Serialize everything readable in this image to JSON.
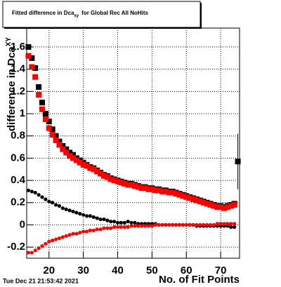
{
  "chart_data": {
    "type": "scatter",
    "title": [
      "Fitted difference in Dca",
      "xy",
      "for Global Rec All NoHits"
    ],
    "y_label": [
      "difference in Dca",
      "XY"
    ],
    "x_label": "No. of Fit Points",
    "timestamp": "Tue Dec 21 21:53:42 2021",
    "xlim": [
      13.5,
      75.5
    ],
    "ylim": [
      -0.3,
      1.77
    ],
    "xticks": [
      20,
      30,
      40,
      50,
      60,
      70
    ],
    "yticks": [
      -0.2,
      0,
      0.2,
      0.4,
      0.6,
      0.8,
      1,
      1.2,
      1.4,
      1.6
    ],
    "grid": true,
    "x": [
      14,
      15,
      16,
      17,
      18,
      19,
      20,
      21,
      22,
      23,
      24,
      25,
      26,
      27,
      28,
      29,
      30,
      31,
      32,
      33,
      34,
      35,
      36,
      37,
      38,
      39,
      40,
      41,
      42,
      43,
      44,
      45,
      46,
      47,
      48,
      49,
      50,
      51,
      52,
      53,
      54,
      55,
      56,
      57,
      58,
      59,
      60,
      61,
      62,
      63,
      64,
      65,
      66,
      67,
      68,
      69,
      70,
      71,
      72,
      73,
      74
    ],
    "series": [
      {
        "color": "#000000",
        "marker": "square",
        "values": [
          1.6,
          1.5,
          1.41,
          1.24,
          1.1,
          1.0,
          0.93,
          0.86,
          0.8,
          0.75,
          0.71,
          0.68,
          0.65,
          0.63,
          0.6,
          0.58,
          0.56,
          0.54,
          0.52,
          0.51,
          0.49,
          0.47,
          0.45,
          0.44,
          0.42,
          0.41,
          0.4,
          0.39,
          0.38,
          0.37,
          0.37,
          0.36,
          0.35,
          0.34,
          0.34,
          0.33,
          0.33,
          0.32,
          0.32,
          0.31,
          0.31,
          0.3,
          0.3,
          0.29,
          0.28,
          0.27,
          0.26,
          0.25,
          0.24,
          0.23,
          0.22,
          0.21,
          0.2,
          0.19,
          0.18,
          0.17,
          0.17,
          0.16,
          0.17,
          0.18,
          0.19
        ]
      },
      {
        "color": "#ff0000",
        "marker": "square",
        "values": [
          1.52,
          1.42,
          1.33,
          1.17,
          1.04,
          0.95,
          0.87,
          0.81,
          0.76,
          0.72,
          0.68,
          0.65,
          0.62,
          0.6,
          0.58,
          0.56,
          0.54,
          0.53,
          0.51,
          0.5,
          0.48,
          0.46,
          0.44,
          0.43,
          0.41,
          0.4,
          0.39,
          0.38,
          0.37,
          0.36,
          0.36,
          0.35,
          0.34,
          0.33,
          0.33,
          0.32,
          0.32,
          0.31,
          0.31,
          0.3,
          0.3,
          0.29,
          0.29,
          0.28,
          0.27,
          0.26,
          0.25,
          0.24,
          0.23,
          0.22,
          0.21,
          0.2,
          0.19,
          0.18,
          0.17,
          0.16,
          0.16,
          0.15,
          0.16,
          0.17,
          0.18
        ]
      },
      {
        "color": "#000000",
        "marker": "circle",
        "values": [
          0.31,
          0.3,
          0.29,
          0.27,
          0.25,
          0.23,
          0.21,
          0.2,
          0.18,
          0.17,
          0.15,
          0.14,
          0.13,
          0.12,
          0.11,
          0.1,
          0.09,
          0.08,
          0.08,
          0.07,
          0.06,
          0.05,
          0.05,
          0.04,
          0.03,
          0.03,
          0.02,
          0.02,
          0.02,
          0.03,
          0.02,
          0.02,
          0.01,
          0.01,
          0.01,
          0.01,
          0.01,
          0.01,
          0,
          0,
          0,
          0,
          0,
          0,
          0,
          0,
          0,
          0,
          0,
          -0.01,
          -0.01,
          -0.01,
          -0.01,
          -0.01,
          -0.01,
          -0.01,
          -0.01,
          -0.01,
          -0.01,
          -0.02,
          -0.02
        ]
      },
      {
        "color": "#ff0000",
        "marker": "circle",
        "values": [
          -0.25,
          -0.25,
          -0.23,
          -0.21,
          -0.19,
          -0.17,
          -0.15,
          -0.14,
          -0.13,
          -0.12,
          -0.11,
          -0.1,
          -0.09,
          -0.08,
          -0.08,
          -0.07,
          -0.06,
          -0.06,
          -0.05,
          -0.05,
          -0.04,
          -0.04,
          -0.03,
          -0.03,
          -0.03,
          -0.02,
          -0.02,
          -0.02,
          -0.02,
          -0.02,
          -0.01,
          -0.01,
          -0.01,
          -0.01,
          -0.01,
          -0.01,
          -0.01,
          0,
          0,
          0,
          0,
          0,
          0,
          0,
          0,
          0,
          0,
          0,
          0,
          0,
          0,
          0,
          0,
          0,
          0,
          0.01,
          0.01,
          0.01,
          0.01,
          0.01,
          0.01
        ]
      },
      {
        "color": "#000000",
        "marker": "square",
        "x": [
          75
        ],
        "values": [
          0.57
        ],
        "errors": [
          0.25
        ]
      }
    ]
  }
}
